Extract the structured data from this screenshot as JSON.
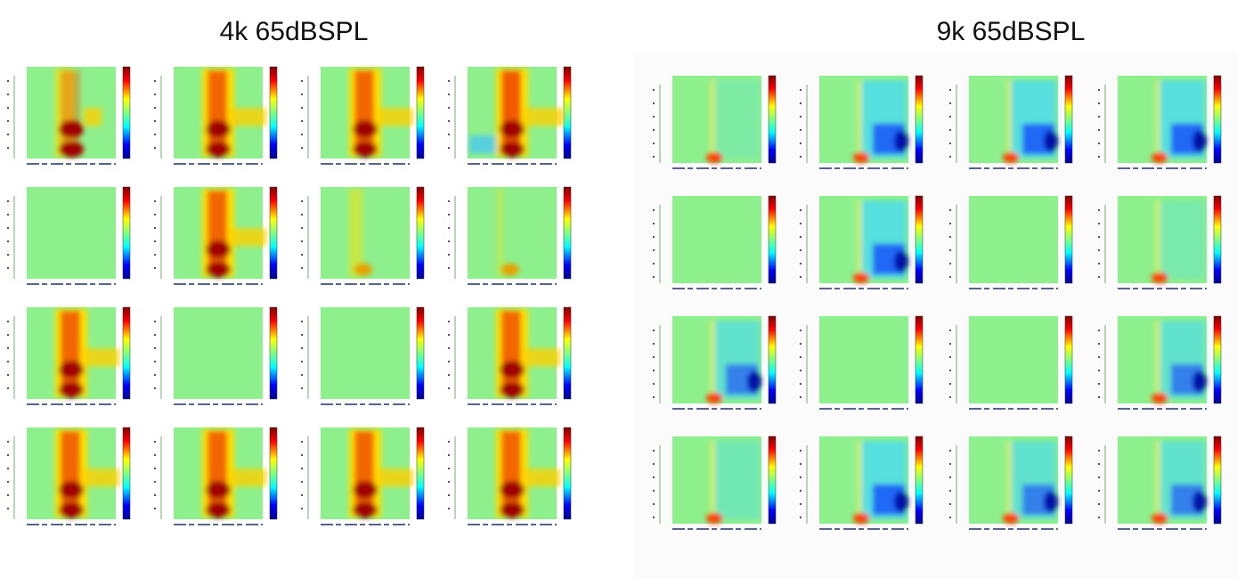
{
  "left_panel": {
    "title": "4k 65dBSPL"
  },
  "right_panel": {
    "title": "9k 65dBSPL"
  }
}
